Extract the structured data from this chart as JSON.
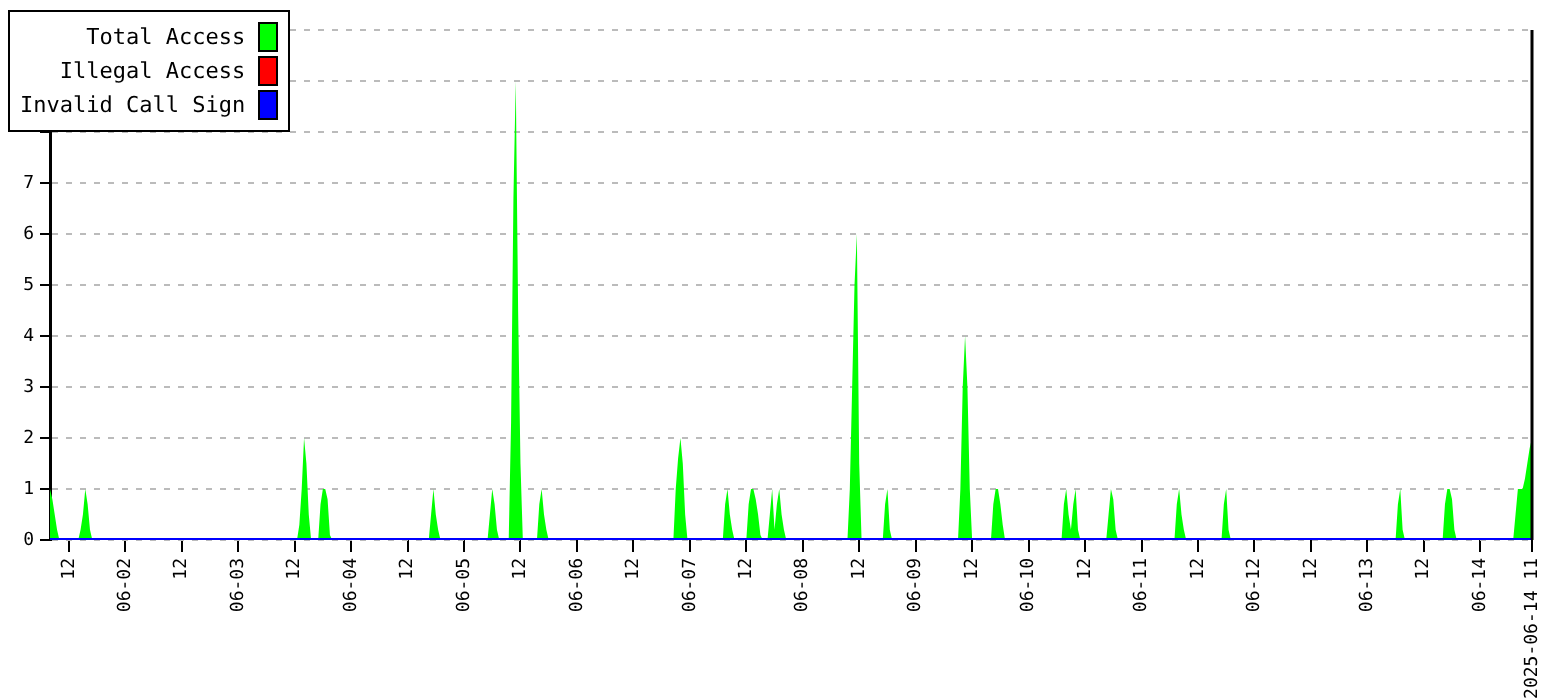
{
  "chart_data": {
    "type": "area",
    "xlim": [
      "2025-06-01T08:00",
      "2025-06-14T11:00"
    ],
    "xticks": [
      {
        "value": "2025-06-01T12:00",
        "label": "12"
      },
      {
        "value": "2025-06-02",
        "label": "06-02"
      },
      {
        "value": "2025-06-02T12:00",
        "label": "12"
      },
      {
        "value": "2025-06-03",
        "label": "06-03"
      },
      {
        "value": "2025-06-03T12:00",
        "label": "12"
      },
      {
        "value": "2025-06-04",
        "label": "06-04"
      },
      {
        "value": "2025-06-04T12:00",
        "label": "12"
      },
      {
        "value": "2025-06-05",
        "label": "06-05"
      },
      {
        "value": "2025-06-05T12:00",
        "label": "12"
      },
      {
        "value": "2025-06-06",
        "label": "06-06"
      },
      {
        "value": "2025-06-06T12:00",
        "label": "12"
      },
      {
        "value": "2025-06-07",
        "label": "06-07"
      },
      {
        "value": "2025-06-07T12:00",
        "label": "12"
      },
      {
        "value": "2025-06-08",
        "label": "06-08"
      },
      {
        "value": "2025-06-08T12:00",
        "label": "12"
      },
      {
        "value": "2025-06-09",
        "label": "06-09"
      },
      {
        "value": "2025-06-09T12:00",
        "label": "12"
      },
      {
        "value": "2025-06-10",
        "label": "06-10"
      },
      {
        "value": "2025-06-10T12:00",
        "label": "12"
      },
      {
        "value": "2025-06-11",
        "label": "06-11"
      },
      {
        "value": "2025-06-11T12:00",
        "label": "12"
      },
      {
        "value": "2025-06-12",
        "label": "06-12"
      },
      {
        "value": "2025-06-12T12:00",
        "label": "12"
      },
      {
        "value": "2025-06-13",
        "label": "06-13"
      },
      {
        "value": "2025-06-13T12:00",
        "label": "12"
      },
      {
        "value": "2025-06-14",
        "label": "06-14"
      },
      {
        "value": "2025-06-14T11:00",
        "label": "2025-06-14 11"
      }
    ],
    "ylim": [
      0,
      10
    ],
    "yticks": [
      0,
      1,
      2,
      3,
      4,
      5,
      6,
      7,
      {
        "value": 8,
        "label": null
      },
      {
        "value": 9,
        "label": null
      },
      {
        "value": 10,
        "label": null
      }
    ],
    "grid": "y",
    "legend": "top left",
    "series": [
      {
        "name": "Total Access",
        "color": "#00ff00",
        "x": [
          "2025-06-01T08:00",
          "2025-06-01T08:30",
          "2025-06-01T09:00",
          "2025-06-01T09:30",
          "2025-06-01T10:00",
          "2025-06-01T14:00",
          "2025-06-01T14:30",
          "2025-06-01T15:00",
          "2025-06-01T15:30",
          "2025-06-01T16:00",
          "2025-06-01T16:30",
          "2025-06-01T17:00",
          "2025-06-03T12:30",
          "2025-06-03T13:00",
          "2025-06-03T13:30",
          "2025-06-03T14:00",
          "2025-06-03T14:30",
          "2025-06-03T15:00",
          "2025-06-03T15:30",
          "2025-06-03T17:00",
          "2025-06-03T17:30",
          "2025-06-03T18:00",
          "2025-06-03T18:30",
          "2025-06-03T19:00",
          "2025-06-03T19:30",
          "2025-06-03T20:00",
          "2025-06-04T16:30",
          "2025-06-04T17:00",
          "2025-06-04T17:30",
          "2025-06-04T18:00",
          "2025-06-04T18:30",
          "2025-06-04T19:00",
          "2025-06-05T05:00",
          "2025-06-05T05:30",
          "2025-06-05T06:00",
          "2025-06-05T06:30",
          "2025-06-05T07:00",
          "2025-06-05T07:30",
          "2025-06-05T09:30",
          "2025-06-05T10:00",
          "2025-06-05T10:30",
          "2025-06-05T11:00",
          "2025-06-05T11:30",
          "2025-06-05T12:00",
          "2025-06-05T12:30",
          "2025-06-05T15:30",
          "2025-06-05T16:00",
          "2025-06-05T16:30",
          "2025-06-05T17:00",
          "2025-06-05T17:30",
          "2025-06-05T18:00",
          "2025-06-06T20:30",
          "2025-06-06T21:00",
          "2025-06-06T21:30",
          "2025-06-06T22:00",
          "2025-06-06T22:30",
          "2025-06-06T23:00",
          "2025-06-06T23:30",
          "2025-06-07T07:00",
          "2025-06-07T07:30",
          "2025-06-07T08:00",
          "2025-06-07T08:30",
          "2025-06-07T09:00",
          "2025-06-07T09:30",
          "2025-06-07T12:00",
          "2025-06-07T12:30",
          "2025-06-07T13:00",
          "2025-06-07T13:30",
          "2025-06-07T14:00",
          "2025-06-07T14:30",
          "2025-06-07T15:00",
          "2025-06-07T15:30",
          "2025-06-07T16:30",
          "2025-06-07T17:00",
          "2025-06-07T17:30",
          "2025-06-07T18:00",
          "2025-06-07T18:30",
          "2025-06-07T19:00",
          "2025-06-07T19:30",
          "2025-06-07T20:00",
          "2025-06-07T20:30",
          "2025-06-08T09:30",
          "2025-06-08T10:00",
          "2025-06-08T10:30",
          "2025-06-08T11:00",
          "2025-06-08T11:30",
          "2025-06-08T12:00",
          "2025-06-08T12:30",
          "2025-06-08T17:00",
          "2025-06-08T17:30",
          "2025-06-08T18:00",
          "2025-06-08T18:30",
          "2025-06-08T19:00",
          "2025-06-09T09:00",
          "2025-06-09T09:30",
          "2025-06-09T10:00",
          "2025-06-09T10:30",
          "2025-06-09T11:00",
          "2025-06-09T11:30",
          "2025-06-09T12:00",
          "2025-06-09T16:00",
          "2025-06-09T16:30",
          "2025-06-09T17:00",
          "2025-06-09T17:30",
          "2025-06-09T18:00",
          "2025-06-09T18:30",
          "2025-06-09T19:00",
          "2025-06-10T07:00",
          "2025-06-10T07:30",
          "2025-06-10T08:00",
          "2025-06-10T08:30",
          "2025-06-10T09:00",
          "2025-06-10T09:30",
          "2025-06-10T10:00",
          "2025-06-10T10:30",
          "2025-06-10T11:00",
          "2025-06-10T16:30",
          "2025-06-10T17:00",
          "2025-06-10T17:30",
          "2025-06-10T18:00",
          "2025-06-10T18:30",
          "2025-06-10T19:00",
          "2025-06-11T07:00",
          "2025-06-11T07:30",
          "2025-06-11T08:00",
          "2025-06-11T08:30",
          "2025-06-11T09:00",
          "2025-06-11T09:30",
          "2025-06-11T17:00",
          "2025-06-11T17:30",
          "2025-06-11T18:00",
          "2025-06-11T18:30",
          "2025-06-11T19:00",
          "2025-06-13T06:00",
          "2025-06-13T06:30",
          "2025-06-13T07:00",
          "2025-06-13T07:30",
          "2025-06-13T08:00",
          "2025-06-13T16:00",
          "2025-06-13T16:30",
          "2025-06-13T17:00",
          "2025-06-13T17:30",
          "2025-06-13T18:00",
          "2025-06-13T18:30",
          "2025-06-13T19:00",
          "2025-06-14T07:00",
          "2025-06-14T07:30",
          "2025-06-14T08:00",
          "2025-06-14T08:30",
          "2025-06-14T09:00",
          "2025-06-14T09:30",
          "2025-06-14T10:00",
          "2025-06-14T10:30",
          "2025-06-14T11:00"
        ],
        "values": [
          1,
          0.8,
          0.5,
          0.2,
          0,
          0,
          0.2,
          0.5,
          1,
          0.7,
          0.2,
          0,
          0,
          0.3,
          1,
          2,
          1.5,
          0.5,
          0,
          0,
          0.7,
          1,
          1,
          0.8,
          0.1,
          0,
          0,
          0.5,
          1,
          0.5,
          0.2,
          0,
          0,
          0.5,
          1,
          0.7,
          0.2,
          0,
          0,
          2.3,
          6.7,
          9,
          4.5,
          1.5,
          0,
          0,
          0.7,
          1,
          0.5,
          0.2,
          0,
          0,
          1,
          1.6,
          2,
          1.5,
          0.5,
          0,
          0,
          0.7,
          1,
          0.5,
          0.2,
          0,
          0,
          0.7,
          1,
          1,
          0.8,
          0.5,
          0.1,
          0,
          0,
          0.5,
          1,
          0.2,
          0.7,
          1,
          0.5,
          0.2,
          0,
          0,
          1,
          3,
          5,
          6,
          1.5,
          0,
          0,
          0.7,
          1,
          0.2,
          0,
          0,
          1,
          3,
          4,
          3,
          1,
          0,
          0,
          0.7,
          1,
          1,
          0.7,
          0.3,
          0,
          0,
          0.7,
          1,
          0.5,
          0.2,
          0.7,
          1,
          0.2,
          0,
          0,
          0.5,
          1,
          0.8,
          0.2,
          0,
          0,
          0.7,
          1,
          0.5,
          0.2,
          0,
          0,
          0.7,
          1,
          0.2,
          0,
          0,
          0.7,
          1,
          0.2,
          0,
          0,
          0.7,
          1,
          1,
          0.8,
          0.2,
          0,
          0,
          0.5,
          1,
          1,
          1,
          1.2,
          1.5,
          1.8,
          2
        ]
      },
      {
        "name": "Illegal Access",
        "color": "#ff0000",
        "type": "line"
      },
      {
        "name": "Invalid Call Sign",
        "color": "#0000ff",
        "type": "line",
        "x": [
          "2025-06-01T08:00",
          "2025-06-14T11:00"
        ],
        "values": [
          0,
          0
        ]
      }
    ]
  }
}
